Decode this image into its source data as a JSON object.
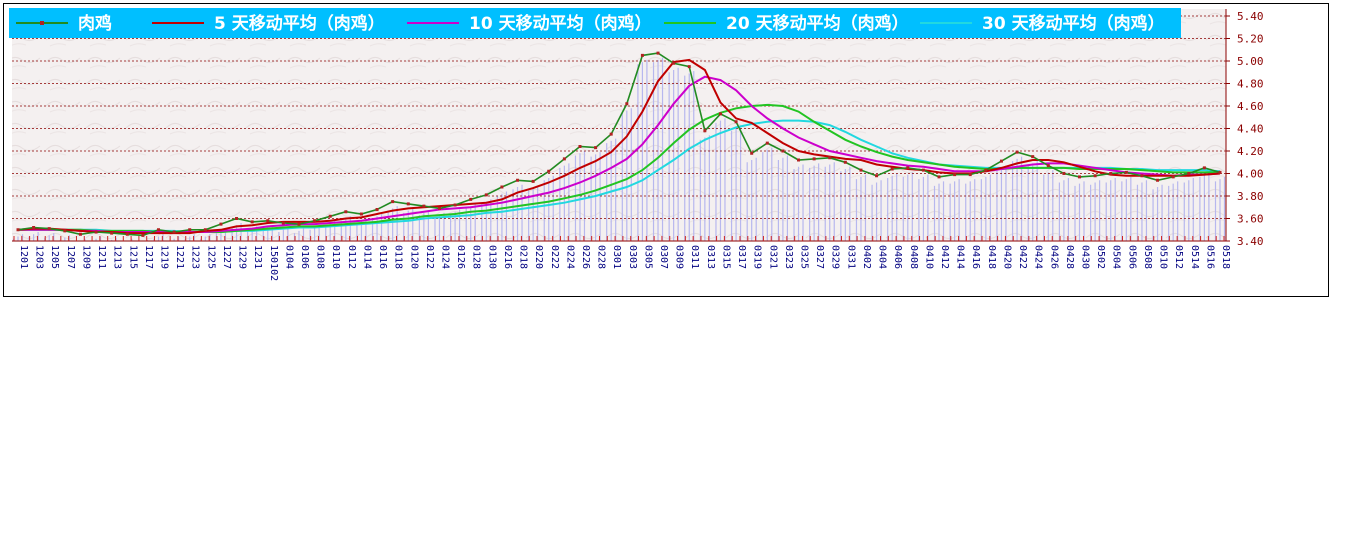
{
  "chart_data": {
    "type": "line",
    "ylim": [
      3.4,
      5.4
    ],
    "yticks": [
      "3.40",
      "3.60",
      "3.80",
      "4.00",
      "4.20",
      "4.40",
      "4.60",
      "4.80",
      "5.00",
      "5.20",
      "5.40"
    ],
    "grid": true,
    "legend_position": "top",
    "background": "#f3efef",
    "x_labels": [
      "1201",
      "1203",
      "1205",
      "1207",
      "1209",
      "1211",
      "1213",
      "1215",
      "1217",
      "1219",
      "1221",
      "1223",
      "1225",
      "1227",
      "1229",
      "1231",
      "150102",
      "0104",
      "0106",
      "0108",
      "0110",
      "0112",
      "0114",
      "0116",
      "0118",
      "0120",
      "0122",
      "0124",
      "0126",
      "0128",
      "0130",
      "0216",
      "0218",
      "0220",
      "0222",
      "0224",
      "0226",
      "0228",
      "0301",
      "0303",
      "0305",
      "0307",
      "0309",
      "0311",
      "0313",
      "0315",
      "0317",
      "0319",
      "0321",
      "0323",
      "0325",
      "0327",
      "0329",
      "0331",
      "0402",
      "0404",
      "0406",
      "0408",
      "0410",
      "0412",
      "0414",
      "0416",
      "0418",
      "0420",
      "0422",
      "0424",
      "0426",
      "0428",
      "0430",
      "0502",
      "0504",
      "0506",
      "0508",
      "0510",
      "0512",
      "0514",
      "0516",
      "0518"
    ],
    "series": [
      {
        "name": "肉鸡",
        "color": "#228b22",
        "marker_color": "#b22222",
        "values": [
          3.5,
          3.52,
          3.51,
          3.49,
          3.46,
          3.48,
          3.47,
          3.46,
          3.45,
          3.5,
          3.48,
          3.5,
          3.5,
          3.55,
          3.6,
          3.57,
          3.58,
          3.56,
          3.55,
          3.58,
          3.62,
          3.66,
          3.64,
          3.68,
          3.75,
          3.73,
          3.71,
          3.69,
          3.72,
          3.77,
          3.81,
          3.88,
          3.94,
          3.93,
          4.02,
          4.13,
          4.24,
          4.23,
          4.35,
          4.62,
          5.05,
          5.07,
          4.98,
          4.95,
          4.38,
          4.53,
          4.46,
          4.18,
          4.27,
          4.2,
          4.12,
          4.13,
          4.14,
          4.1,
          4.03,
          3.98,
          4.04,
          4.05,
          4.03,
          3.97,
          3.99,
          3.99,
          4.03,
          4.11,
          4.19,
          4.15,
          4.07,
          4.0,
          3.97,
          3.98,
          4.0,
          4.01,
          3.98,
          3.94,
          3.97,
          4.0,
          4.05,
          4.01
        ]
      },
      {
        "name": "5 天移动平均（肉鸡）",
        "color": "#c00000",
        "values": [
          3.5,
          3.51,
          3.51,
          3.5,
          3.49,
          3.48,
          3.48,
          3.47,
          3.47,
          3.47,
          3.47,
          3.47,
          3.49,
          3.5,
          3.53,
          3.54,
          3.56,
          3.57,
          3.57,
          3.57,
          3.58,
          3.6,
          3.61,
          3.64,
          3.67,
          3.69,
          3.7,
          3.71,
          3.72,
          3.73,
          3.74,
          3.77,
          3.83,
          3.87,
          3.92,
          3.98,
          4.05,
          4.11,
          4.19,
          4.33,
          4.55,
          4.82,
          4.99,
          5.01,
          4.92,
          4.63,
          4.49,
          4.45,
          4.36,
          4.27,
          4.2,
          4.17,
          4.15,
          4.13,
          4.12,
          4.08,
          4.06,
          4.04,
          4.03,
          4.01,
          4.0,
          4.0,
          4.02,
          4.05,
          4.09,
          4.12,
          4.12,
          4.1,
          4.06,
          4.02,
          3.99,
          3.98,
          3.98,
          3.98,
          3.98,
          3.98,
          3.99,
          4.0
        ]
      },
      {
        "name": "10 天移动平均（肉鸡）",
        "color": "#cc00cc",
        "values": [
          3.5,
          3.5,
          3.5,
          3.5,
          3.49,
          3.49,
          3.48,
          3.48,
          3.48,
          3.48,
          3.48,
          3.48,
          3.48,
          3.49,
          3.5,
          3.51,
          3.53,
          3.54,
          3.55,
          3.55,
          3.56,
          3.57,
          3.58,
          3.6,
          3.62,
          3.64,
          3.66,
          3.68,
          3.69,
          3.7,
          3.72,
          3.74,
          3.77,
          3.8,
          3.83,
          3.87,
          3.92,
          3.98,
          4.05,
          4.13,
          4.26,
          4.43,
          4.62,
          4.78,
          4.86,
          4.83,
          4.74,
          4.6,
          4.49,
          4.4,
          4.32,
          4.26,
          4.2,
          4.17,
          4.14,
          4.11,
          4.09,
          4.07,
          4.06,
          4.04,
          4.02,
          4.02,
          4.02,
          4.04,
          4.06,
          4.08,
          4.09,
          4.09,
          4.07,
          4.05,
          4.03,
          4.01,
          4.0,
          3.99,
          3.98,
          3.99,
          3.99,
          4.0
        ]
      },
      {
        "name": "20 天移动平均（肉鸡）",
        "color": "#22c422",
        "values": [
          3.5,
          3.5,
          3.5,
          3.5,
          3.5,
          3.49,
          3.49,
          3.49,
          3.49,
          3.48,
          3.48,
          3.48,
          3.48,
          3.48,
          3.49,
          3.5,
          3.51,
          3.52,
          3.53,
          3.53,
          3.54,
          3.55,
          3.56,
          3.57,
          3.59,
          3.6,
          3.62,
          3.63,
          3.64,
          3.66,
          3.67,
          3.69,
          3.71,
          3.73,
          3.75,
          3.78,
          3.81,
          3.85,
          3.9,
          3.95,
          4.03,
          4.14,
          4.27,
          4.39,
          4.48,
          4.54,
          4.58,
          4.6,
          4.61,
          4.6,
          4.55,
          4.46,
          4.38,
          4.3,
          4.24,
          4.19,
          4.15,
          4.12,
          4.1,
          4.08,
          4.06,
          4.05,
          4.04,
          4.04,
          4.05,
          4.05,
          4.05,
          4.05,
          4.04,
          4.04,
          4.04,
          4.04,
          4.03,
          4.02,
          4.01,
          4.01,
          4.01,
          4.01
        ]
      },
      {
        "name": "30 天移动平均（肉鸡）",
        "color": "#22d8e0",
        "values": [
          3.5,
          3.5,
          3.5,
          3.5,
          3.5,
          3.5,
          3.49,
          3.49,
          3.49,
          3.49,
          3.49,
          3.48,
          3.48,
          3.48,
          3.49,
          3.49,
          3.5,
          3.51,
          3.52,
          3.52,
          3.53,
          3.54,
          3.55,
          3.56,
          3.57,
          3.58,
          3.6,
          3.61,
          3.62,
          3.63,
          3.65,
          3.66,
          3.68,
          3.7,
          3.72,
          3.74,
          3.77,
          3.8,
          3.84,
          3.88,
          3.94,
          4.03,
          4.12,
          4.22,
          4.3,
          4.36,
          4.41,
          4.44,
          4.46,
          4.47,
          4.47,
          4.46,
          4.43,
          4.37,
          4.3,
          4.24,
          4.18,
          4.14,
          4.11,
          4.08,
          4.07,
          4.06,
          4.05,
          4.05,
          4.05,
          4.05,
          4.05,
          4.05,
          4.05,
          4.05,
          4.05,
          4.04,
          4.04,
          4.03,
          4.03,
          4.03,
          4.03,
          4.02
        ]
      }
    ]
  }
}
